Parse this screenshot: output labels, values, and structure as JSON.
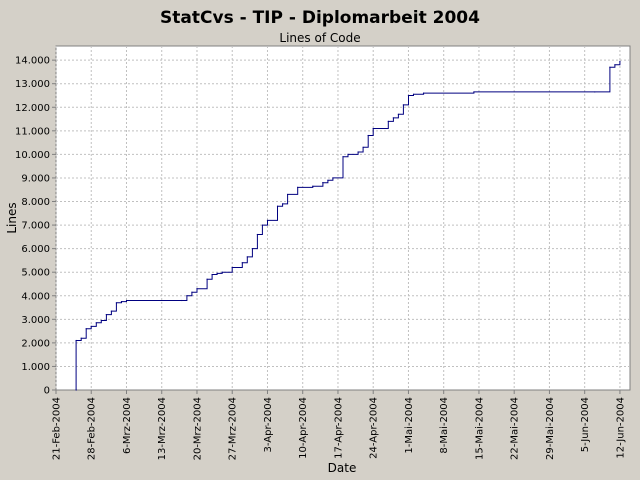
{
  "chart_data": {
    "type": "line",
    "title": "StatCvs - TIP - Diplomarbeit 2004",
    "subtitle": "Lines of Code",
    "xlabel": "Date",
    "ylabel": "Lines",
    "ylim": [
      0,
      14600
    ],
    "xlim": [
      "2004-02-21",
      "2004-06-14"
    ],
    "grid": true,
    "y_ticks": [
      {
        "value": 0,
        "label": "0"
      },
      {
        "value": 1000,
        "label": "1.000"
      },
      {
        "value": 2000,
        "label": "2.000"
      },
      {
        "value": 3000,
        "label": "3.000"
      },
      {
        "value": 4000,
        "label": "4.000"
      },
      {
        "value": 5000,
        "label": "5.000"
      },
      {
        "value": 6000,
        "label": "6.000"
      },
      {
        "value": 7000,
        "label": "7.000"
      },
      {
        "value": 8000,
        "label": "8.000"
      },
      {
        "value": 9000,
        "label": "9.000"
      },
      {
        "value": 10000,
        "label": "10.000"
      },
      {
        "value": 11000,
        "label": "11.000"
      },
      {
        "value": 12000,
        "label": "12.000"
      },
      {
        "value": 13000,
        "label": "13.000"
      },
      {
        "value": 14000,
        "label": "14.000"
      }
    ],
    "x_ticks": [
      {
        "date": "2004-02-21",
        "label": "21-Feb-2004"
      },
      {
        "date": "2004-02-28",
        "label": "28-Feb-2004"
      },
      {
        "date": "2004-03-06",
        "label": "6-Mrz-2004"
      },
      {
        "date": "2004-03-13",
        "label": "13-Mrz-2004"
      },
      {
        "date": "2004-03-20",
        "label": "20-Mrz-2004"
      },
      {
        "date": "2004-03-27",
        "label": "27-Mrz-2004"
      },
      {
        "date": "2004-04-03",
        "label": "3-Apr-2004"
      },
      {
        "date": "2004-04-10",
        "label": "10-Apr-2004"
      },
      {
        "date": "2004-04-17",
        "label": "17-Apr-2004"
      },
      {
        "date": "2004-04-24",
        "label": "24-Apr-2004"
      },
      {
        "date": "2004-05-01",
        "label": "1-Mai-2004"
      },
      {
        "date": "2004-05-08",
        "label": "8-Mai-2004"
      },
      {
        "date": "2004-05-15",
        "label": "15-Mai-2004"
      },
      {
        "date": "2004-05-22",
        "label": "22-Mai-2004"
      },
      {
        "date": "2004-05-29",
        "label": "29-Mai-2004"
      },
      {
        "date": "2004-06-05",
        "label": "5-Jun-2004"
      },
      {
        "date": "2004-06-12",
        "label": "12-Jun-2004"
      }
    ],
    "series": [
      {
        "color": "#000080",
        "step": true,
        "points": [
          {
            "x": "2004-02-25",
            "y": 0
          },
          {
            "x": "2004-02-25",
            "y": 2100
          },
          {
            "x": "2004-02-26",
            "y": 2200
          },
          {
            "x": "2004-02-27",
            "y": 2600
          },
          {
            "x": "2004-02-28",
            "y": 2700
          },
          {
            "x": "2004-02-29",
            "y": 2850
          },
          {
            "x": "2004-03-01",
            "y": 2950
          },
          {
            "x": "2004-03-02",
            "y": 3200
          },
          {
            "x": "2004-03-03",
            "y": 3350
          },
          {
            "x": "2004-03-04",
            "y": 3700
          },
          {
            "x": "2004-03-05",
            "y": 3750
          },
          {
            "x": "2004-03-06",
            "y": 3800
          },
          {
            "x": "2004-03-17",
            "y": 3800
          },
          {
            "x": "2004-03-18",
            "y": 4000
          },
          {
            "x": "2004-03-19",
            "y": 4150
          },
          {
            "x": "2004-03-20",
            "y": 4300
          },
          {
            "x": "2004-03-22",
            "y": 4700
          },
          {
            "x": "2004-03-23",
            "y": 4900
          },
          {
            "x": "2004-03-24",
            "y": 4950
          },
          {
            "x": "2004-03-25",
            "y": 5000
          },
          {
            "x": "2004-03-27",
            "y": 5200
          },
          {
            "x": "2004-03-29",
            "y": 5400
          },
          {
            "x": "2004-03-30",
            "y": 5650
          },
          {
            "x": "2004-03-31",
            "y": 6000
          },
          {
            "x": "2004-04-01",
            "y": 6600
          },
          {
            "x": "2004-04-02",
            "y": 7000
          },
          {
            "x": "2004-04-03",
            "y": 7200
          },
          {
            "x": "2004-04-05",
            "y": 7800
          },
          {
            "x": "2004-04-06",
            "y": 7900
          },
          {
            "x": "2004-04-07",
            "y": 8300
          },
          {
            "x": "2004-04-09",
            "y": 8600
          },
          {
            "x": "2004-04-12",
            "y": 8650
          },
          {
            "x": "2004-04-14",
            "y": 8800
          },
          {
            "x": "2004-04-15",
            "y": 8900
          },
          {
            "x": "2004-04-16",
            "y": 9000
          },
          {
            "x": "2004-04-18",
            "y": 9900
          },
          {
            "x": "2004-04-19",
            "y": 10000
          },
          {
            "x": "2004-04-21",
            "y": 10100
          },
          {
            "x": "2004-04-22",
            "y": 10300
          },
          {
            "x": "2004-04-23",
            "y": 10800
          },
          {
            "x": "2004-04-24",
            "y": 11100
          },
          {
            "x": "2004-04-27",
            "y": 11400
          },
          {
            "x": "2004-04-28",
            "y": 11550
          },
          {
            "x": "2004-04-29",
            "y": 11700
          },
          {
            "x": "2004-04-30",
            "y": 12100
          },
          {
            "x": "2004-05-01",
            "y": 12500
          },
          {
            "x": "2004-05-02",
            "y": 12550
          },
          {
            "x": "2004-05-04",
            "y": 12600
          },
          {
            "x": "2004-05-14",
            "y": 12650
          },
          {
            "x": "2004-06-07",
            "y": 12650
          },
          {
            "x": "2004-06-10",
            "y": 13700
          },
          {
            "x": "2004-06-11",
            "y": 13800
          },
          {
            "x": "2004-06-12",
            "y": 13950
          }
        ]
      }
    ]
  }
}
